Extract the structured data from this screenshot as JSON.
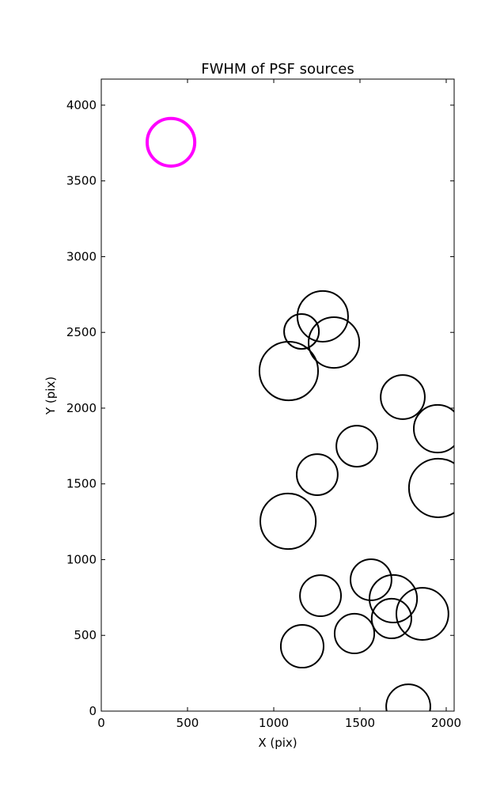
{
  "chart_data": {
    "type": "scatter",
    "title": "FWHM of PSF sources",
    "xlabel": "X (pix)",
    "ylabel": "Y (pix)",
    "xlim": [
      0,
      2046
    ],
    "ylim": [
      0,
      4172
    ],
    "xticks": [
      0,
      500,
      1000,
      1500,
      2000
    ],
    "yticks": [
      0,
      500,
      1000,
      1500,
      2000,
      2500,
      3000,
      3500,
      4000
    ],
    "grid": false,
    "colors": {
      "default": "#000000",
      "highlight": "#ff00ff"
    },
    "points": [
      {
        "x": 404,
        "y": 3755,
        "r": 138,
        "highlight": true
      },
      {
        "x": 1284,
        "y": 2606,
        "r": 147
      },
      {
        "x": 1161,
        "y": 2506,
        "r": 101
      },
      {
        "x": 1349,
        "y": 2433,
        "r": 147
      },
      {
        "x": 1087,
        "y": 2245,
        "r": 170
      },
      {
        "x": 1748,
        "y": 2073,
        "r": 128
      },
      {
        "x": 1950,
        "y": 1864,
        "r": 138
      },
      {
        "x": 1482,
        "y": 1749,
        "r": 119
      },
      {
        "x": 1252,
        "y": 1561,
        "r": 119
      },
      {
        "x": 1954,
        "y": 1473,
        "r": 170
      },
      {
        "x": 1083,
        "y": 1253,
        "r": 161
      },
      {
        "x": 1564,
        "y": 867,
        "r": 119
      },
      {
        "x": 1693,
        "y": 742,
        "r": 138
      },
      {
        "x": 1271,
        "y": 762,
        "r": 119
      },
      {
        "x": 1862,
        "y": 642,
        "r": 151
      },
      {
        "x": 1683,
        "y": 611,
        "r": 115
      },
      {
        "x": 1468,
        "y": 512,
        "r": 115
      },
      {
        "x": 1165,
        "y": 428,
        "r": 124
      },
      {
        "x": 1780,
        "y": 31,
        "r": 128
      }
    ]
  }
}
